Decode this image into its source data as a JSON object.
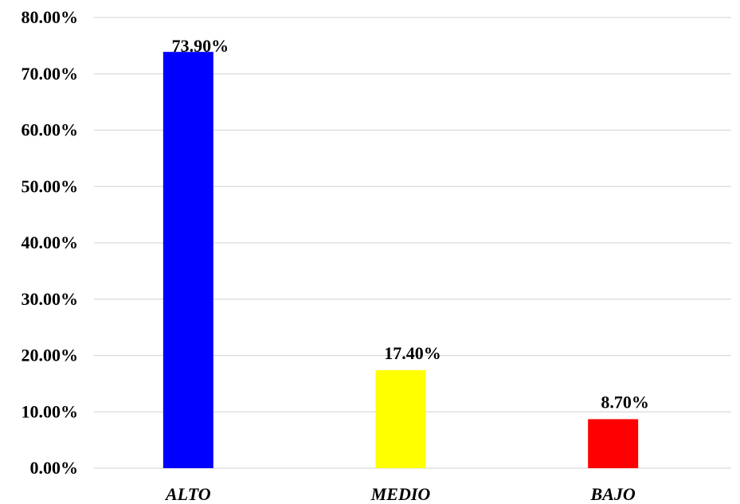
{
  "chart_data": {
    "type": "bar",
    "categories": [
      "ALTO",
      "MEDIO",
      "BAJO"
    ],
    "values": [
      73.9,
      17.4,
      8.7
    ],
    "data_labels": [
      "73.90%",
      "17.40%",
      "8.70%"
    ],
    "colors": [
      "#0000ff",
      "#ffff00",
      "#ff0000"
    ],
    "y_ticks": [
      "0.00%",
      "10.00%",
      "20.00%",
      "30.00%",
      "40.00%",
      "50.00%",
      "60.00%",
      "70.00%",
      "80.00%"
    ],
    "ylim": [
      0,
      80
    ],
    "grid": true,
    "legend": "none",
    "title": "",
    "xlabel": "",
    "ylabel": ""
  }
}
